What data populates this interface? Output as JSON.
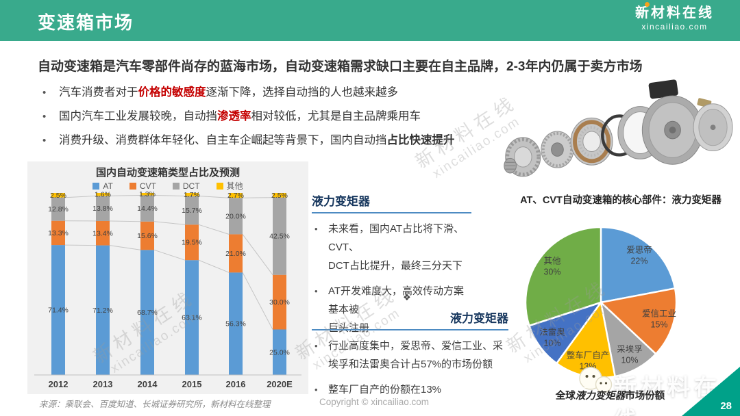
{
  "header": {
    "title": "变速箱市场",
    "logo_cn": "新材料在线",
    "logo_en": "xincailiao.com"
  },
  "headline": "自动变速箱是汽车零部件尚存的蓝海市场，自动变速箱需求缺口主要在自主品牌，2-3年内仍属于卖方市场",
  "key_points": [
    {
      "segments": [
        {
          "t": "汽车消费者对于",
          "s": "n"
        },
        {
          "t": "价格的敏感度",
          "s": "r"
        },
        {
          "t": "逐渐下降，选择自动挡的人也越来越多",
          "s": "n"
        }
      ]
    },
    {
      "segments": [
        {
          "t": "国内汽车工业发展较晚，自动挡",
          "s": "n"
        },
        {
          "t": "渗透率",
          "s": "r"
        },
        {
          "t": "相对较低，尤其是自主品牌乘用车",
          "s": "n"
        }
      ]
    },
    {
      "segments": [
        {
          "t": "消费升级、消费群体年轻化、自主车企崛起等背景下，国内自动挡",
          "s": "n"
        },
        {
          "t": "占比快速提升",
          "s": "b"
        }
      ]
    }
  ],
  "sections": {
    "s1": {
      "heading": "液力变矩器",
      "bullets": [
        [
          "未来看，国内AT占比将下滑、CVT、",
          "DCT占比提升，最终三分天下"
        ],
        [
          "AT开发难度大，高效传动方案基本被",
          "巨头注册"
        ]
      ]
    },
    "divider": "❖",
    "s2": {
      "heading": "液力变矩器",
      "bullets": [
        [
          "行业高度集中，爱思帝、爱信工业、采",
          "埃孚和法雷奥合计占57%的市场份额"
        ],
        [
          "整车厂自产的份额在13%"
        ]
      ]
    }
  },
  "right_title": "AT、CVT自动变速箱的核心部件：液力变矩器",
  "chart_data": [
    {
      "type": "bar",
      "subtype": "stacked-percent",
      "title": "国内自动变速箱类型占比及预测",
      "categories": [
        "2012",
        "2013",
        "2014",
        "2015",
        "2016",
        "2020E"
      ],
      "series": [
        {
          "name": "AT",
          "color": "#5B9BD5",
          "values": [
            71.4,
            71.2,
            68.7,
            63.1,
            56.3,
            25.0
          ]
        },
        {
          "name": "CVT",
          "color": "#ED7D31",
          "values": [
            13.3,
            13.4,
            15.6,
            19.5,
            21.0,
            30.0
          ]
        },
        {
          "name": "DCT",
          "color": "#A5A5A5",
          "values": [
            12.8,
            13.8,
            14.4,
            15.7,
            20.0,
            42.5
          ]
        },
        {
          "name": "其他",
          "color": "#FFC000",
          "values": [
            2.5,
            1.6,
            1.3,
            1.7,
            2.7,
            2.5
          ]
        }
      ],
      "ylim": [
        0,
        100
      ],
      "value_suffix": "%",
      "legend_position": "top",
      "series_lines": true,
      "grid": false
    },
    {
      "type": "pie",
      "title": "全球液力变矩器市场份额",
      "title_segments": [
        {
          "t": "全球",
          "s": "b"
        },
        {
          "t": "液力变矩器",
          "s": "bi"
        },
        {
          "t": "市场份额",
          "s": "b"
        }
      ],
      "labels": [
        "爱思帝",
        "爱信工业",
        "采埃孚",
        "整车厂自产",
        "法雷奥",
        "其他"
      ],
      "values": [
        22,
        15,
        10,
        13,
        10,
        30
      ],
      "colors": [
        "#5B9BD5",
        "#ED7D31",
        "#A5A5A5",
        "#FFC000",
        "#4472C4",
        "#70AD47"
      ],
      "start_angle_deg": 0,
      "direction": "clockwise",
      "value_suffix": "%"
    }
  ],
  "watermark": {
    "cn": "新材料在线",
    "en": "xincailiao.com"
  },
  "footer": {
    "source": "来源：乘联会、百度知道、长城证券研究所，新材料在线整理",
    "copyright": "Copyright © xincailiao.com",
    "page": "28"
  },
  "colors": {
    "header_bg": "#39AA8C",
    "page_triangle": "#00A189",
    "highlight_red": "#C40000",
    "heading_navy": "#17375E",
    "underline_blue": "#4D8BC2",
    "body_text": "#333333",
    "chart_text": "#404040",
    "muted_text": "#A9A9A9",
    "logo_dot_orange": "#F6A21C"
  }
}
